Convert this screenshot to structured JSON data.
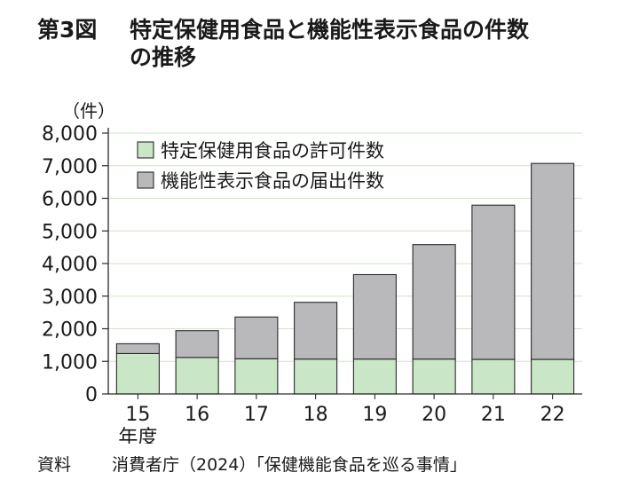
{
  "title": {
    "figure_number": "第3図",
    "line1": "特定保健用食品と機能性表示食品の件数",
    "line2": "の推移"
  },
  "source": {
    "label": "資料",
    "text": "消費者庁（2024）「保健機能食品を巡る事情」"
  },
  "colors": {
    "tokuho": "#c9e6c6",
    "kinousei": "#b9b9bc",
    "outline": "#2a2a2a",
    "grid": "#cfe3c9"
  },
  "chart_data": {
    "type": "bar",
    "stacked": true,
    "title": "特定保健用食品と機能性表示食品の件数の推移",
    "ylabel": "（件）",
    "xlabel": "年度",
    "categories": [
      "15",
      "16",
      "17",
      "18",
      "19",
      "20",
      "21",
      "22"
    ],
    "series": [
      {
        "name": "特定保健用食品の許可件数",
        "values": [
          1240,
          1120,
          1080,
          1070,
          1070,
          1070,
          1060,
          1060
        ]
      },
      {
        "name": "機能性表示食品の届出件数",
        "values": [
          300,
          820,
          1280,
          1740,
          2590,
          3510,
          4730,
          6010
        ]
      }
    ],
    "ylim": [
      0,
      8000
    ],
    "yticks": [
      0,
      1000,
      2000,
      3000,
      4000,
      5000,
      6000,
      7000,
      8000
    ],
    "ytick_labels": [
      "0",
      "1,000",
      "2,000",
      "3,000",
      "4,000",
      "5,000",
      "6,000",
      "7,000",
      "8,000"
    ],
    "grid": true,
    "legend_position": "top-left"
  }
}
